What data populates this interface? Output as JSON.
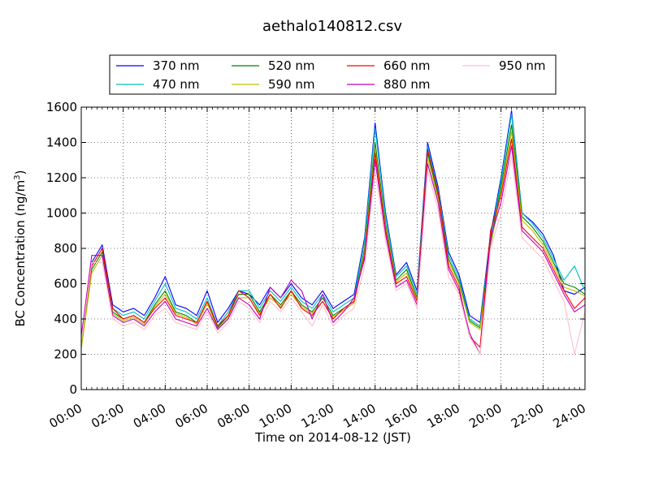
{
  "chart_data": {
    "type": "line",
    "title": "aethalo140812.csv",
    "xlabel": "Time on 2014-08-12 (JST)",
    "ylabel": "BC Concentration (ng/m",
    "ylabel_superscript": "3",
    "ylabel_suffix": ")",
    "ylim": [
      0,
      1600
    ],
    "yticks": [
      0,
      200,
      400,
      600,
      800,
      1000,
      1200,
      1400,
      1600
    ],
    "xlim": [
      "00:00",
      "24:00"
    ],
    "xticks": [
      "00:00",
      "02:00",
      "04:00",
      "06:00",
      "08:00",
      "10:00",
      "12:00",
      "14:00",
      "16:00",
      "18:00",
      "20:00",
      "22:00",
      "24:00"
    ],
    "grid": true,
    "legend_position": "top",
    "x": [
      "00:00",
      "00:30",
      "01:00",
      "01:30",
      "02:00",
      "02:30",
      "03:00",
      "03:30",
      "04:00",
      "04:30",
      "05:00",
      "05:30",
      "06:00",
      "06:30",
      "07:00",
      "07:30",
      "08:00",
      "08:30",
      "09:00",
      "09:30",
      "10:00",
      "10:30",
      "11:00",
      "11:30",
      "12:00",
      "12:30",
      "13:00",
      "13:30",
      "14:00",
      "14:30",
      "15:00",
      "15:30",
      "16:00",
      "16:30",
      "17:00",
      "17:30",
      "18:00",
      "18:30",
      "19:00",
      "19:30",
      "20:00",
      "20:30",
      "21:00",
      "21:30",
      "22:00",
      "22:30",
      "23:00",
      "23:30",
      "24:00"
    ],
    "series": [
      {
        "name": "370 nm",
        "color": "#0000ff",
        "values": [
          260,
          720,
          820,
          480,
          440,
          460,
          420,
          520,
          640,
          480,
          460,
          420,
          560,
          380,
          460,
          560,
          540,
          480,
          580,
          520,
          600,
          520,
          480,
          560,
          460,
          500,
          540,
          860,
          1510,
          1000,
          650,
          720,
          560,
          1400,
          1150,
          780,
          650,
          420,
          380,
          880,
          1200,
          1580,
          1000,
          950,
          880,
          760,
          560,
          540,
          580
        ]
      },
      {
        "name": "470 nm",
        "color": "#00bfbf",
        "values": [
          250,
          700,
          800,
          460,
          420,
          440,
          400,
          500,
          600,
          460,
          440,
          400,
          520,
          360,
          440,
          560,
          560,
          460,
          560,
          500,
          580,
          500,
          460,
          540,
          440,
          480,
          520,
          840,
          1480,
          980,
          640,
          700,
          540,
          1380,
          1130,
          760,
          630,
          400,
          360,
          860,
          1180,
          1560,
          1000,
          940,
          860,
          740,
          620,
          700,
          560
        ]
      },
      {
        "name": "520 nm",
        "color": "#008000",
        "values": [
          240,
          680,
          780,
          440,
          400,
          420,
          380,
          480,
          560,
          440,
          420,
          380,
          500,
          350,
          420,
          540,
          540,
          440,
          540,
          480,
          560,
          480,
          440,
          520,
          420,
          460,
          500,
          800,
          1400,
          940,
          620,
          680,
          520,
          1340,
          1100,
          740,
          610,
          390,
          350,
          830,
          1150,
          1500,
          980,
          920,
          840,
          720,
          600,
          580,
          540
        ]
      },
      {
        "name": "590 nm",
        "color": "#bfbf00",
        "values": [
          230,
          660,
          760,
          430,
          390,
          410,
          370,
          470,
          540,
          430,
          410,
          370,
          490,
          340,
          410,
          520,
          520,
          430,
          520,
          470,
          540,
          470,
          430,
          500,
          410,
          450,
          490,
          780,
          1360,
          920,
          610,
          660,
          510,
          1310,
          1080,
          720,
          600,
          380,
          340,
          810,
          1120,
          1460,
          960,
          900,
          820,
          700,
          580,
          560,
          530
        ]
      },
      {
        "name": "660 nm",
        "color": "#ff0000",
        "values": [
          280,
          700,
          800,
          460,
          400,
          420,
          380,
          460,
          520,
          420,
          400,
          380,
          500,
          360,
          420,
          560,
          520,
          420,
          540,
          460,
          560,
          460,
          420,
          500,
          400,
          460,
          500,
          760,
          1340,
          900,
          600,
          640,
          500,
          1360,
          1120,
          700,
          580,
          300,
          240,
          900,
          1100,
          1420,
          920,
          860,
          800,
          680,
          560,
          460,
          520
        ]
      },
      {
        "name": "880 nm",
        "color": "#bf00bf",
        "values": [
          300,
          760,
          760,
          420,
          380,
          400,
          360,
          440,
          500,
          400,
          380,
          360,
          460,
          340,
          400,
          520,
          480,
          400,
          580,
          520,
          620,
          560,
          400,
          540,
          380,
          440,
          520,
          740,
          1300,
          880,
          580,
          620,
          480,
          1280,
          1060,
          680,
          560,
          320,
          200,
          860,
          1060,
          1380,
          900,
          840,
          780,
          660,
          540,
          440,
          480
        ]
      },
      {
        "name": "950 nm",
        "color": "#ffc0cb",
        "values": [
          270,
          720,
          720,
          400,
          360,
          380,
          340,
          420,
          460,
          380,
          360,
          340,
          440,
          320,
          380,
          500,
          460,
          380,
          500,
          440,
          520,
          440,
          360,
          480,
          360,
          420,
          460,
          700,
          1240,
          840,
          560,
          600,
          460,
          1240,
          1020,
          640,
          540,
          300,
          200,
          800,
          1000,
          1320,
          860,
          800,
          740,
          620,
          500,
          200,
          440
        ]
      }
    ]
  }
}
